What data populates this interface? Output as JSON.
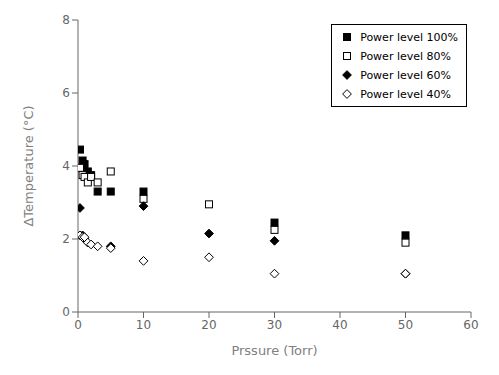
{
  "chart_data": {
    "type": "scatter",
    "xlabel": "Prssure (Torr)",
    "ylabel": "ΔTemperature (°C)",
    "xlim": [
      0,
      60
    ],
    "ylim": [
      0,
      8
    ],
    "xticks": [
      0,
      10,
      20,
      30,
      40,
      50,
      60
    ],
    "yticks": [
      0,
      2,
      4,
      6,
      8
    ],
    "grid": false,
    "legend": "upper right",
    "series": [
      {
        "name": "Power level 100%",
        "color": "black",
        "marker": "square",
        "x": [
          0.3,
          0.7,
          1.0,
          1.5,
          2.0,
          3.0,
          5.0,
          10.0,
          30.0,
          50.0
        ],
        "values": [
          4.45,
          4.15,
          4.05,
          3.85,
          3.75,
          3.3,
          3.3,
          3.3,
          2.45,
          2.1
        ]
      },
      {
        "name": "Power level 80%",
        "color": "black",
        "marker": "open_square",
        "x": [
          0.3,
          0.7,
          1.0,
          1.5,
          2.0,
          3.0,
          5.0,
          10.0,
          20.0,
          30.0,
          50.0
        ],
        "values": [
          3.95,
          3.75,
          3.7,
          3.55,
          3.7,
          3.55,
          3.85,
          3.1,
          2.95,
          2.25,
          1.9
        ]
      },
      {
        "name": "Power level 60%",
        "color": "black",
        "marker": "diamond",
        "x": [
          0.3,
          0.7,
          1.0,
          5.0,
          10.0,
          20.0,
          30.0,
          50.0
        ],
        "values": [
          2.85,
          2.1,
          2.0,
          1.8,
          2.9,
          2.15,
          1.95,
          1.05
        ]
      },
      {
        "name": "Power level 40%",
        "color": "black",
        "marker": "open_diamond",
        "x": [
          0.3,
          0.7,
          1.0,
          1.5,
          2.0,
          3.0,
          5.0,
          10.0,
          20.0,
          30.0,
          50.0
        ],
        "values": [
          2.1,
          2.05,
          2.05,
          1.9,
          1.85,
          1.8,
          1.75,
          1.4,
          1.5,
          1.05,
          1.05
        ]
      }
    ]
  }
}
